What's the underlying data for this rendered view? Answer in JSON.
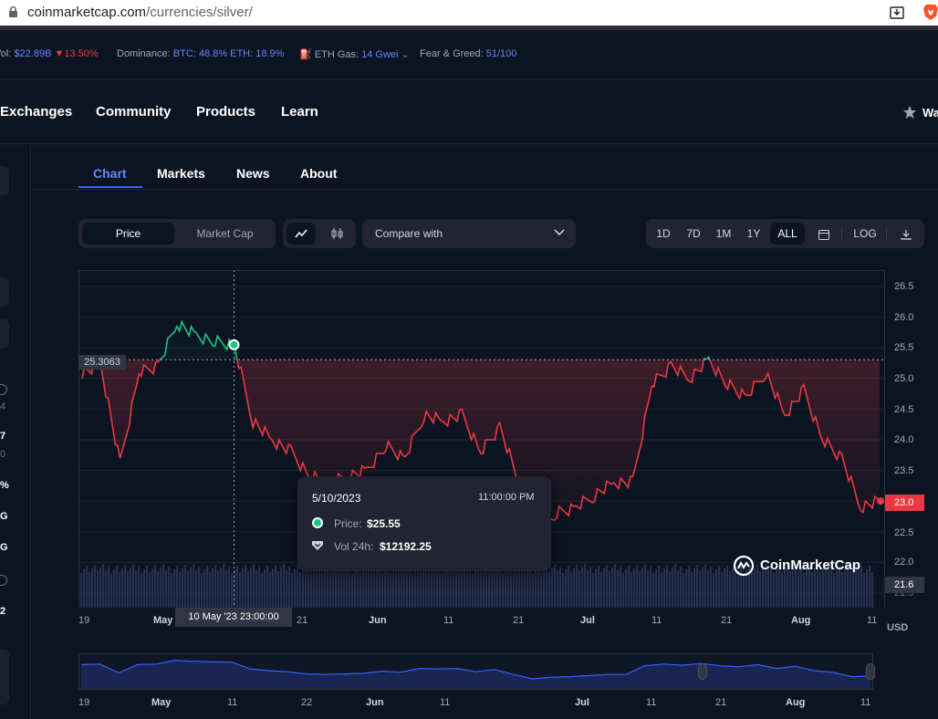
{
  "browser": {
    "url_domain": "coinmarketcap.com",
    "url_path": "/currencies/silver/"
  },
  "stats": {
    "vol_label": "Vol:",
    "vol_value": "$22.89B",
    "vol_change": "13.50%",
    "dominance_label": "Dominance:",
    "dominance_value": "BTC: 48.8% ETH: 18.9%",
    "gas_label": "ETH Gas:",
    "gas_value": "14 Gwei",
    "fng_label": "Fear & Greed:",
    "fng_value": "51/100"
  },
  "nav": {
    "items": [
      "Exchanges",
      "Community",
      "Products",
      "Learn"
    ],
    "watchlist": "Wa"
  },
  "left_fragments": [
    "4",
    "7",
    "0",
    "%",
    "G",
    "G",
    "2"
  ],
  "tabs": [
    "Chart",
    "Markets",
    "News",
    "About"
  ],
  "controls": {
    "price": "Price",
    "market_cap": "Market Cap",
    "compare": "Compare with",
    "ranges": [
      "1D",
      "7D",
      "1M",
      "1Y",
      "ALL"
    ],
    "log": "LOG"
  },
  "colors": {
    "up": "#16c784",
    "down": "#ea3943",
    "accent": "#3861fb"
  },
  "chart": {
    "crosshair_price": "25.3063",
    "crosshair_date": "10 May '23  23:00:00",
    "current_price": "23.0",
    "volume_label": "21.6",
    "watermark": "CoinMarketCap",
    "currency": "USD",
    "y_ticks": [
      "26.5",
      "26.0",
      "25.5",
      "25.0",
      "24.5",
      "24.0",
      "23.5",
      "23.0",
      "22.5",
      "22.0",
      "21.5"
    ],
    "x_ticks": [
      "19",
      "May",
      "11",
      "21",
      "Jun",
      "11",
      "21",
      "Jul",
      "11",
      "21",
      "Aug",
      "11"
    ],
    "nav_x_ticks": [
      "19",
      "May",
      "11",
      "22",
      "Jun",
      "11",
      "Jul",
      "11",
      "21",
      "Aug",
      "11"
    ]
  },
  "tooltip": {
    "date": "5/10/2023",
    "time": "11:00:00 PM",
    "price_label": "Price:",
    "price_value": "$25.55",
    "vol_label": "Vol 24h:",
    "vol_value": "$12192.25"
  },
  "chart_data": {
    "type": "line",
    "ylim": [
      21.5,
      26.5
    ],
    "baseline": 25.3063,
    "x": [
      "Apr 19",
      "Apr 22",
      "Apr 25",
      "Apr 28",
      "May 1",
      "May 4",
      "May 6",
      "May 8",
      "May 10",
      "May 11",
      "May 14",
      "May 17",
      "May 20",
      "May 23",
      "May 26",
      "May 29",
      "Jun 1",
      "Jun 4",
      "Jun 7",
      "Jun 10",
      "Jun 13",
      "Jun 16",
      "Jun 19",
      "Jun 22",
      "Jun 25",
      "Jun 28",
      "Jul 1",
      "Jul 4",
      "Jul 7",
      "Jul 10",
      "Jul 12",
      "Jul 14",
      "Jul 16",
      "Jul 19",
      "Jul 22",
      "Jul 25",
      "Jul 28",
      "Jul 31",
      "Aug 3",
      "Aug 6",
      "Aug 9",
      "Aug 11",
      "Aug 12"
    ],
    "values": [
      25.1,
      25.2,
      23.6,
      25.1,
      25.2,
      25.9,
      25.7,
      25.6,
      25.55,
      24.3,
      24.0,
      23.8,
      23.4,
      23.3,
      23.4,
      23.5,
      23.9,
      23.7,
      24.4,
      24.3,
      24.4,
      23.8,
      24.2,
      23.3,
      22.5,
      22.8,
      22.9,
      23.1,
      23.3,
      23.3,
      24.9,
      25.2,
      25.0,
      25.3,
      24.9,
      24.7,
      25.1,
      24.4,
      24.8,
      24.0,
      23.7,
      22.9,
      23.0
    ],
    "volume": [
      21.6,
      21.6,
      21.6,
      21.6,
      21.6,
      21.6,
      21.6,
      21.6,
      21.6,
      21.6,
      21.6,
      21.6,
      21.6,
      21.6,
      21.6,
      21.6,
      21.6,
      21.6,
      21.6,
      21.6,
      21.6,
      21.6,
      21.6,
      21.6,
      21.6,
      21.6,
      21.6,
      21.6,
      21.6,
      21.6,
      21.6,
      21.6,
      21.6,
      21.6,
      21.6,
      21.6,
      21.6,
      21.6,
      21.6,
      21.6,
      21.6,
      21.6,
      21.6
    ],
    "xlabel": "",
    "ylabel": "USD"
  }
}
